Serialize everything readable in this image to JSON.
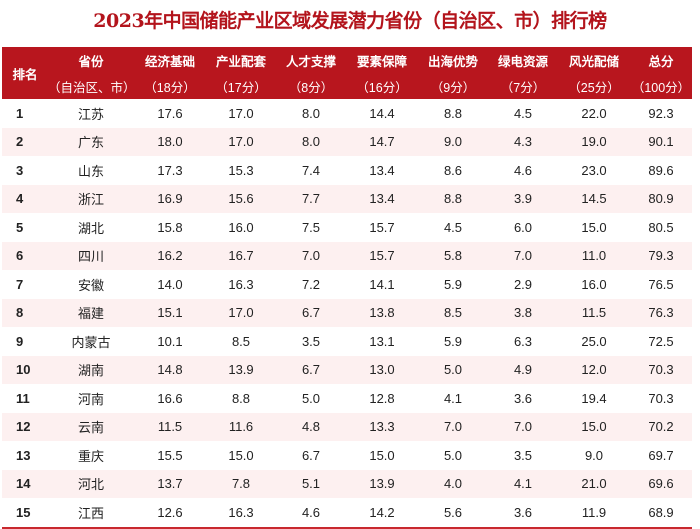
{
  "title": "2023年中国储能产业区域发展潜力省份（自治区、市）排行榜",
  "headers": [
    {
      "l1": "排名",
      "l2": ""
    },
    {
      "l1": "省份",
      "l2": "（自治区、市）"
    },
    {
      "l1": "经济基础",
      "l2": "（18分）"
    },
    {
      "l1": "产业配套",
      "l2": "（17分）"
    },
    {
      "l1": "人才支撑",
      "l2": "（8分）"
    },
    {
      "l1": "要素保障",
      "l2": "（16分）"
    },
    {
      "l1": "出海优势",
      "l2": "（9分）"
    },
    {
      "l1": "绿电资源",
      "l2": "（7分）"
    },
    {
      "l1": "风光配储",
      "l2": "（25分）"
    },
    {
      "l1": "总分",
      "l2": "（100分）"
    }
  ],
  "rows": [
    [
      "1",
      "江苏",
      "17.6",
      "17.0",
      "8.0",
      "14.4",
      "8.8",
      "4.5",
      "22.0",
      "92.3"
    ],
    [
      "2",
      "广东",
      "18.0",
      "17.0",
      "8.0",
      "14.7",
      "9.0",
      "4.3",
      "19.0",
      "90.1"
    ],
    [
      "3",
      "山东",
      "17.3",
      "15.3",
      "7.4",
      "13.4",
      "8.6",
      "4.6",
      "23.0",
      "89.6"
    ],
    [
      "4",
      "浙江",
      "16.9",
      "15.6",
      "7.7",
      "13.4",
      "8.8",
      "3.9",
      "14.5",
      "80.9"
    ],
    [
      "5",
      "湖北",
      "15.8",
      "16.0",
      "7.5",
      "15.7",
      "4.5",
      "6.0",
      "15.0",
      "80.5"
    ],
    [
      "6",
      "四川",
      "16.2",
      "16.7",
      "7.0",
      "15.7",
      "5.8",
      "7.0",
      "11.0",
      "79.3"
    ],
    [
      "7",
      "安徽",
      "14.0",
      "16.3",
      "7.2",
      "14.1",
      "5.9",
      "2.9",
      "16.0",
      "76.5"
    ],
    [
      "8",
      "福建",
      "15.1",
      "17.0",
      "6.7",
      "13.8",
      "8.5",
      "3.8",
      "11.5",
      "76.3"
    ],
    [
      "9",
      "内蒙古",
      "10.1",
      "8.5",
      "3.5",
      "13.1",
      "5.9",
      "6.3",
      "25.0",
      "72.5"
    ],
    [
      "10",
      "湖南",
      "14.8",
      "13.9",
      "6.7",
      "13.0",
      "5.0",
      "4.9",
      "12.0",
      "70.3"
    ],
    [
      "11",
      "河南",
      "16.6",
      "8.8",
      "5.0",
      "12.8",
      "4.1",
      "3.6",
      "19.4",
      "70.3"
    ],
    [
      "12",
      "云南",
      "11.5",
      "11.6",
      "4.8",
      "13.3",
      "7.0",
      "7.0",
      "15.0",
      "70.2"
    ],
    [
      "13",
      "重庆",
      "15.5",
      "15.0",
      "6.7",
      "15.0",
      "5.0",
      "3.5",
      "9.0",
      "69.7"
    ],
    [
      "14",
      "河北",
      "13.7",
      "7.8",
      "5.1",
      "13.9",
      "4.0",
      "4.1",
      "21.0",
      "69.6"
    ],
    [
      "15",
      "江西",
      "12.6",
      "16.3",
      "4.6",
      "14.2",
      "5.6",
      "3.6",
      "11.9",
      "68.9"
    ]
  ]
}
